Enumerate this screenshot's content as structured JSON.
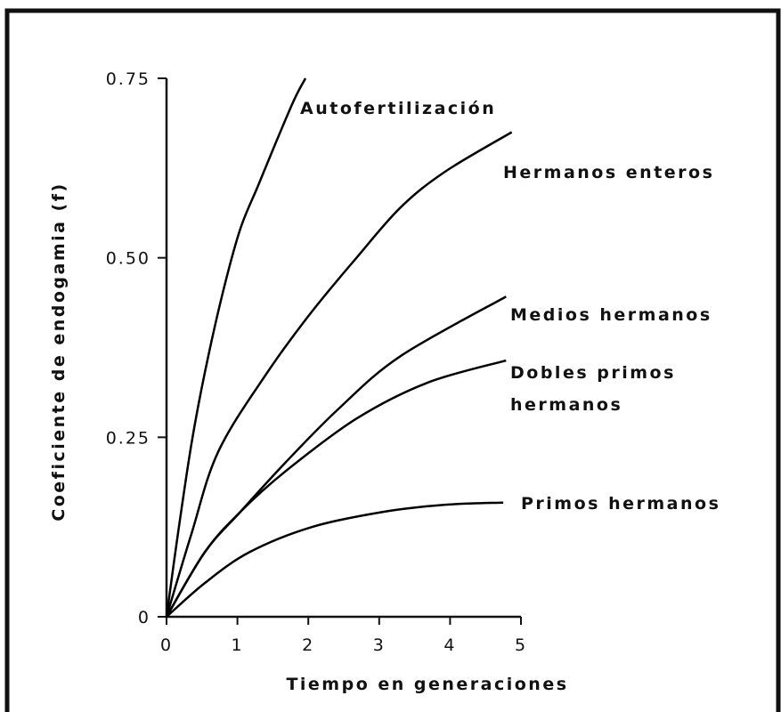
{
  "chart_data": {
    "type": "line",
    "xlabel": "Tiempo en generaciones",
    "ylabel": "Coeficiente de endogamia (f)",
    "xlim": [
      0,
      5
    ],
    "xticks": [
      0,
      1,
      2,
      3,
      4,
      5
    ],
    "ylim": [
      0,
      0.75
    ],
    "yticks": [
      0,
      0.25,
      {
        "value": 0.5,
        "label": "0.50"
      },
      0.75
    ],
    "series": [
      {
        "name": "Autofertilización",
        "color": "#000000",
        "x": [
          0,
          0.16,
          0.35,
          0.54,
          0.79,
          1.04,
          1.29,
          1.54,
          1.8,
          1.96
        ],
        "values": [
          0,
          0.115,
          0.24,
          0.34,
          0.45,
          0.54,
          0.6,
          0.66,
          0.72,
          0.75
        ]
      },
      {
        "name": "Hermanos enteros",
        "color": "#000000",
        "x": [
          0,
          0.35,
          0.73,
          1.42,
          2.05,
          2.68,
          3.3,
          3.93,
          4.87
        ],
        "values": [
          0,
          0.115,
          0.23,
          0.34,
          0.425,
          0.5,
          0.57,
          0.62,
          0.675
        ]
      },
      {
        "name": "Medios hermanos",
        "color": "#000000",
        "x": [
          0,
          0.54,
          1.04,
          1.67,
          2.42,
          3.3,
          4.79
        ],
        "values": [
          0,
          0.09,
          0.146,
          0.214,
          0.289,
          0.363,
          0.446
        ]
      },
      {
        "name": "Dobles primos hermanos",
        "color": "#000000",
        "x": [
          0,
          0.54,
          1.04,
          1.67,
          2.68,
          3.68,
          4.79
        ],
        "values": [
          0,
          0.09,
          0.146,
          0.202,
          0.276,
          0.326,
          0.357
        ]
      },
      {
        "name": "Primos hermanos",
        "color": "#000000",
        "x": [
          0,
          0.54,
          1.17,
          2.05,
          3.05,
          3.93,
          4.75
        ],
        "values": [
          0,
          0.047,
          0.09,
          0.125,
          0.146,
          0.156,
          0.159
        ]
      }
    ]
  }
}
